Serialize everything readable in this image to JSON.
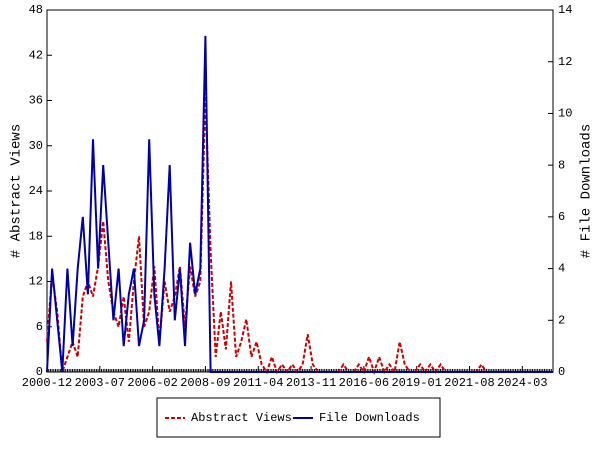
{
  "chart_data": {
    "type": "line",
    "x": [
      "2000-12",
      "2001-03",
      "2001-06",
      "2001-09",
      "2001-12",
      "2002-03",
      "2002-06",
      "2002-09",
      "2002-12",
      "2003-03",
      "2003-06",
      "2003-09",
      "2003-12",
      "2004-03",
      "2004-06",
      "2004-09",
      "2004-12",
      "2005-03",
      "2005-06",
      "2005-09",
      "2005-12",
      "2006-03",
      "2006-06",
      "2006-09",
      "2006-12",
      "2007-03",
      "2007-06",
      "2007-09",
      "2007-12",
      "2008-03",
      "2008-06",
      "2008-09",
      "2008-12",
      "2009-03",
      "2009-06",
      "2009-09",
      "2009-12",
      "2010-03",
      "2010-06",
      "2010-09",
      "2010-12",
      "2011-03",
      "2011-06",
      "2011-09",
      "2011-12",
      "2012-03",
      "2012-06",
      "2012-09",
      "2012-12",
      "2013-03",
      "2013-06",
      "2013-09",
      "2013-12",
      "2014-03",
      "2014-06",
      "2014-09",
      "2014-12",
      "2015-03",
      "2015-06",
      "2015-09",
      "2015-12",
      "2016-03",
      "2016-06",
      "2016-09",
      "2016-12",
      "2017-03",
      "2017-06",
      "2017-09",
      "2017-12",
      "2018-03",
      "2018-06",
      "2018-09",
      "2018-12",
      "2019-03",
      "2019-06",
      "2019-09",
      "2019-12",
      "2020-03",
      "2020-06",
      "2020-09",
      "2020-12",
      "2021-03",
      "2021-06",
      "2021-09",
      "2021-12",
      "2022-03",
      "2022-06",
      "2022-09",
      "2022-12",
      "2023-03",
      "2023-06",
      "2023-09",
      "2023-12",
      "2024-03",
      "2024-06",
      "2024-09",
      "2024-12",
      "2025-03",
      "2025-06",
      "2025-09"
    ],
    "xlim": [
      "2000-12",
      "2025-09"
    ],
    "xticks": [
      "2000-12",
      "2003-07",
      "2006-02",
      "2008-09",
      "2011-04",
      "2013-11",
      "2016-06",
      "2019-01",
      "2021-08",
      "2024-03"
    ],
    "ylabel": "# Abstract Views",
    "ylim": [
      0,
      48
    ],
    "yticks": [
      0,
      6,
      12,
      18,
      24,
      30,
      36,
      42,
      48
    ],
    "y2label": "# File Downloads",
    "y2lim": [
      0,
      14
    ],
    "y2ticks": [
      0,
      2,
      4,
      6,
      8,
      10,
      12,
      14
    ],
    "series": [
      {
        "name": "Abstract Views",
        "color": "#cc0000",
        "dashed": true,
        "axis": "y",
        "values": [
          4,
          13,
          8,
          0,
          2,
          4,
          2,
          10,
          12,
          10,
          14,
          20,
          12,
          8,
          6,
          10,
          4,
          12,
          18,
          6,
          8,
          14,
          4,
          12,
          8,
          10,
          14,
          6,
          14,
          10,
          12,
          37,
          16,
          2,
          8,
          3,
          12,
          2,
          4,
          7,
          2,
          4,
          1,
          0,
          2,
          0,
          1,
          0,
          1,
          0,
          1,
          5,
          1,
          0,
          0,
          0,
          0,
          0,
          1,
          0,
          0,
          1,
          0,
          2,
          0,
          2,
          0,
          1,
          0,
          4,
          1,
          0,
          0,
          1,
          0,
          1,
          0,
          1,
          0,
          0,
          0,
          0,
          0,
          0,
          0,
          1,
          0,
          0,
          0,
          0,
          0,
          0,
          0,
          0,
          0,
          0,
          0,
          0,
          0,
          0
        ]
      },
      {
        "name": "File Downloads",
        "color": "#0000aa",
        "dashed": false,
        "axis": "y2",
        "values": [
          0,
          4,
          2,
          0,
          4,
          1,
          4,
          6,
          3,
          9,
          4,
          8,
          5,
          2,
          4,
          1,
          3,
          4,
          1,
          2,
          9,
          3,
          1,
          4,
          8,
          2,
          4,
          1,
          5,
          3,
          4,
          13,
          0,
          0,
          0,
          0,
          0,
          0,
          0,
          0,
          0,
          0,
          0,
          0,
          0,
          0,
          0,
          0,
          0,
          0,
          0,
          0,
          0,
          0,
          0,
          0,
          0,
          0,
          0,
          0,
          0,
          0,
          0,
          0,
          0,
          0,
          0,
          0,
          0,
          0,
          0,
          0,
          0,
          0,
          0,
          0,
          0,
          0,
          0,
          0,
          0,
          0,
          0,
          0,
          0,
          0,
          0,
          0,
          0,
          0,
          0,
          0,
          0,
          0,
          0,
          0,
          0,
          0,
          0,
          0
        ]
      }
    ]
  }
}
